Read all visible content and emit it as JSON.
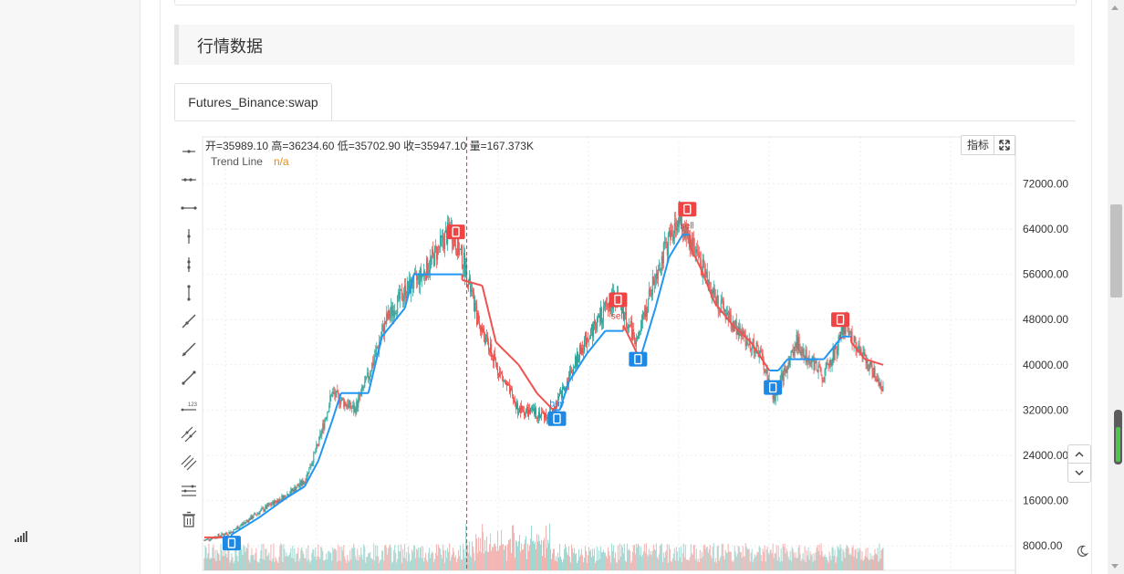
{
  "section": {
    "heading": "行情数据"
  },
  "tabs": [
    {
      "label": "Futures_Binance:swap"
    }
  ],
  "legend": {
    "ohlc": "开=35989.10 高=36234.60 低=35702.90 收=35947.10 量=167.373K",
    "series_name": "Trend Line",
    "series_value": "n/a"
  },
  "toolbar": {
    "indicator_label": "指标"
  },
  "colors": {
    "up": "#26a69a",
    "down": "#ef5350",
    "trend_up": "#2196f3",
    "trend_down": "#ef5350",
    "grid": "#eeeeee",
    "cursor": "#e03131"
  },
  "icons": [
    "cross-icon",
    "dot-line-icon",
    "horizontal-line-icon",
    "vertical-line-icon",
    "vertical-ray-icon",
    "vertical-segment-icon",
    "trend-line-icon",
    "ray-icon",
    "segment-icon",
    "price-label-icon",
    "parallel-lines-icon",
    "channel-icon",
    "fib-icon",
    "trash-icon",
    "expand-icon",
    "chevron-up-icon",
    "chevron-down-icon",
    "moon-icon",
    "signal-icon"
  ],
  "chart_data": {
    "type": "candlestick",
    "y_ticks": [
      "72000.00",
      "64000.00",
      "56000.00",
      "48000.00",
      "40000.00",
      "32000.00",
      "24000.00",
      "16000.00",
      "8000.00"
    ],
    "ylim": [
      6000,
      74000
    ],
    "anchors": [
      [
        0,
        9000
      ],
      [
        30,
        10500
      ],
      [
        60,
        14000
      ],
      [
        90,
        17000
      ],
      [
        110,
        19500
      ],
      [
        125,
        26000
      ],
      [
        140,
        35000
      ],
      [
        165,
        32000
      ],
      [
        180,
        38000
      ],
      [
        200,
        48000
      ],
      [
        220,
        53000
      ],
      [
        240,
        56000
      ],
      [
        270,
        64000
      ],
      [
        285,
        58000
      ],
      [
        300,
        48000
      ],
      [
        320,
        40000
      ],
      [
        345,
        32000
      ],
      [
        380,
        31000
      ],
      [
        395,
        36000
      ],
      [
        420,
        45000
      ],
      [
        450,
        52000
      ],
      [
        475,
        44000
      ],
      [
        495,
        56000
      ],
      [
        520,
        66000
      ],
      [
        540,
        60000
      ],
      [
        560,
        52000
      ],
      [
        585,
        46000
      ],
      [
        610,
        42000
      ],
      [
        625,
        34000
      ],
      [
        650,
        44000
      ],
      [
        680,
        38000
      ],
      [
        705,
        47000
      ],
      [
        720,
        42000
      ],
      [
        745,
        36000
      ]
    ],
    "trend_line": [
      [
        0,
        9500,
        "down"
      ],
      [
        30,
        9500,
        "down"
      ],
      [
        30,
        10000,
        "up"
      ],
      [
        60,
        13000,
        "up"
      ],
      [
        90,
        16500,
        "up"
      ],
      [
        110,
        18500,
        "up"
      ],
      [
        125,
        23000,
        "up"
      ],
      [
        140,
        30000,
        "up"
      ],
      [
        150,
        35000,
        "up"
      ],
      [
        180,
        35000,
        "up"
      ],
      [
        195,
        45000,
        "up"
      ],
      [
        220,
        50000,
        "up"
      ],
      [
        230,
        56000,
        "up"
      ],
      [
        283,
        56000,
        "up"
      ],
      [
        283,
        55000,
        "down"
      ],
      [
        305,
        54000,
        "down"
      ],
      [
        320,
        44000,
        "down"
      ],
      [
        345,
        40000,
        "down"
      ],
      [
        365,
        35000,
        "down"
      ],
      [
        383,
        32000,
        "down"
      ],
      [
        390,
        32000,
        "up"
      ],
      [
        400,
        37000,
        "up"
      ],
      [
        420,
        42000,
        "up"
      ],
      [
        440,
        46000,
        "up"
      ],
      [
        460,
        46000,
        "up"
      ],
      [
        460,
        47000,
        "down"
      ],
      [
        475,
        42000,
        "down"
      ],
      [
        480,
        42000,
        "up"
      ],
      [
        495,
        50000,
        "up"
      ],
      [
        510,
        59000,
        "up"
      ],
      [
        525,
        63000,
        "up"
      ],
      [
        533,
        63000,
        "up"
      ],
      [
        533,
        61000,
        "down"
      ],
      [
        545,
        57000,
        "down"
      ],
      [
        560,
        51000,
        "down"
      ],
      [
        580,
        47000,
        "down"
      ],
      [
        600,
        44000,
        "down"
      ],
      [
        620,
        39000,
        "down"
      ],
      [
        630,
        39000,
        "up"
      ],
      [
        640,
        41000,
        "up"
      ],
      [
        680,
        41000,
        "up"
      ],
      [
        700,
        45000,
        "up"
      ],
      [
        710,
        45000,
        "up"
      ],
      [
        710,
        44000,
        "down"
      ],
      [
        725,
        41000,
        "down"
      ],
      [
        745,
        40000,
        "down"
      ]
    ],
    "signals": [
      {
        "bar": 30,
        "type": "buy",
        "price": 8500,
        "label": ""
      },
      {
        "bar": 276,
        "type": "sell",
        "price": 63500,
        "label": ""
      },
      {
        "bar": 387,
        "type": "buy",
        "price": 30500,
        "label": "buy"
      },
      {
        "bar": 454,
        "type": "sell",
        "price": 51500,
        "label": "sell"
      },
      {
        "bar": 476,
        "type": "buy",
        "price": 41000,
        "label": ""
      },
      {
        "bar": 530,
        "type": "sell",
        "price": 67500,
        "label": "sell"
      },
      {
        "bar": 624,
        "type": "buy",
        "price": 36000,
        "label": ""
      },
      {
        "bar": 698,
        "type": "sell",
        "price": 48000,
        "label": "1"
      }
    ],
    "cursor_bar": 288
  }
}
